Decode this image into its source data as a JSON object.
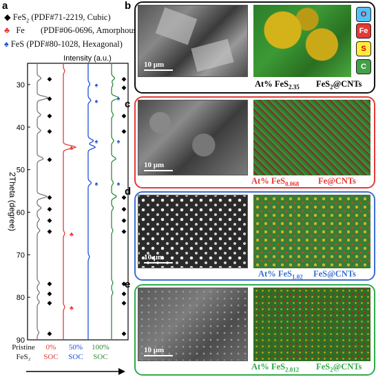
{
  "panel_labels": {
    "a": "a",
    "b": "b",
    "c": "c",
    "d": "d",
    "e": "e"
  },
  "legend": [
    {
      "marker": "◆",
      "color": "#000000",
      "name": "FeS",
      "sub": "2",
      "ref": "(PDF#71-2219, Cubic)"
    },
    {
      "marker": "♣",
      "color": "#e53935",
      "name": "Fe",
      "sub": "",
      "ref": "(PDF#06-0696, Amorphous)"
    },
    {
      "marker": "♠",
      "color": "#1e4fd8",
      "name": "FeS",
      "sub": "",
      "ref": "(PDF#80-1028, Hexagonal)"
    }
  ],
  "chart_data": {
    "type": "line",
    "title": "",
    "xlabel": "Intensity (a.u.)",
    "ylabel": "2Theta (degree)",
    "ylim": [
      90,
      25
    ],
    "yticks": [
      30,
      40,
      50,
      60,
      70,
      80,
      90
    ],
    "series": [
      {
        "name": "Pristine FeS2",
        "color": "#7a7a7a",
        "offset": 0,
        "peaks": [
          [
            28.5,
            0.9
          ],
          [
            33.1,
            2.4
          ],
          [
            37.1,
            0.8
          ],
          [
            40.8,
            0.8
          ],
          [
            47.4,
            1.4
          ],
          [
            56.3,
            2.2
          ],
          [
            59.0,
            0.9
          ],
          [
            61.7,
            0.5
          ],
          [
            64.3,
            0.6
          ],
          [
            76.6,
            0.5
          ],
          [
            78.9,
            0.5
          ],
          [
            81.1,
            0.5
          ],
          [
            88.3,
            0.4
          ]
        ],
        "markers": {
          "symbol": "◆",
          "color": "#000000",
          "positions": [
            28.5,
            33.1,
            37.1,
            40.8,
            47.4,
            56.3,
            59.0,
            61.7,
            64.3,
            76.6,
            78.9,
            81.1,
            88.3
          ]
        }
      },
      {
        "name": "0% SOC",
        "color": "#e53935",
        "offset": 1,
        "peaks": [
          [
            26.8,
            0.3
          ],
          [
            44.7,
            2.8
          ],
          [
            65.0,
            0.3
          ],
          [
            82.3,
            0.3
          ]
        ],
        "markers": {
          "symbol": "♣",
          "color": "#e53935",
          "positions": [
            44.7,
            65.0,
            82.3
          ]
        }
      },
      {
        "name": "50% SOC",
        "color": "#1e4fd8",
        "offset": 2,
        "peaks": [
          [
            29.9,
            0.4
          ],
          [
            33.7,
            0.6
          ],
          [
            43.2,
            1.2
          ],
          [
            44.7,
            1.6
          ],
          [
            53.1,
            0.7
          ],
          [
            70.5,
            0.3
          ]
        ],
        "markers": {
          "symbol": "♠",
          "color": "#1e4fd8",
          "positions": [
            29.9,
            33.7,
            43.2,
            53.1
          ]
        }
      },
      {
        "name": "100% SOC",
        "color": "#2e8b3a",
        "offset": 3,
        "peaks": [
          [
            28.5,
            0.7
          ],
          [
            30.0,
            0.3
          ],
          [
            33.1,
            1.6
          ],
          [
            37.1,
            0.4
          ],
          [
            43.2,
            0.5
          ],
          [
            47.4,
            1.0
          ],
          [
            53.1,
            0.4
          ],
          [
            56.3,
            1.1
          ],
          [
            59.0,
            0.4
          ],
          [
            64.3,
            0.3
          ],
          [
            76.6,
            0.3
          ],
          [
            78.9,
            0.3
          ]
        ],
        "markers_fes2": {
          "symbol": "◆",
          "color": "#000000",
          "positions": [
            28.5,
            30.5,
            37.1,
            40.8,
            56.3,
            59.0,
            61.7,
            64.3,
            76.6,
            78.9,
            81.1,
            88.3
          ]
        },
        "markers_fes": {
          "symbol": "♠",
          "color": "#1e4fd8",
          "positions": [
            33.1,
            43.2,
            53.1
          ]
        }
      }
    ],
    "bottom_labels": [
      {
        "line1": "Pristine",
        "line2": "FeS₂",
        "color": "#111111"
      },
      {
        "line1": "0%",
        "line2": "SOC",
        "color": "#e53935"
      },
      {
        "line1": "50%",
        "line2": "SOC",
        "color": "#1e4fd8"
      },
      {
        "line1": "100%",
        "line2": "SOC",
        "color": "#2e8b3a"
      }
    ]
  },
  "panels": {
    "b": {
      "border": "#111111",
      "scale": "10 μm",
      "cap_left": "At% FeS",
      "cap_left_sub": "2.35",
      "cap_left_color": "#000000",
      "cap_right": "FeS",
      "cap_right_sub": "2",
      "cap_right_tail": "@CNTs",
      "cap_right_color": "#000000",
      "elements": [
        {
          "sym": "O",
          "bg": "#4fc3f7"
        },
        {
          "sym": "Fe",
          "bg": "#e53935"
        },
        {
          "sym": "S",
          "bg": "#ffeb3b"
        },
        {
          "sym": "C",
          "bg": "#43a047"
        }
      ]
    },
    "c": {
      "border": "#e53935",
      "scale": "10 μm",
      "cap_left": "At% FeS",
      "cap_left_sub": "0.068",
      "cap_left_color": "#e53935",
      "cap_right": "Fe@CNTs",
      "cap_right_sub": "",
      "cap_right_tail": "",
      "cap_right_color": "#e53935"
    },
    "d": {
      "border": "#3b6fd0",
      "scale": "10 μm",
      "cap_left": "At% FeS",
      "cap_left_sub": "1.02",
      "cap_left_color": "#3b6fd0",
      "cap_right": "FeS@CNTs",
      "cap_right_sub": "",
      "cap_right_tail": "",
      "cap_right_color": "#3b6fd0"
    },
    "e": {
      "border": "#2eaa4a",
      "scale": "10 μm",
      "cap_left": "At% FeS",
      "cap_left_sub": "2.012",
      "cap_left_color": "#2eaa4a",
      "cap_right": "FeS",
      "cap_right_sub": "2",
      "cap_right_tail": "@CNTs",
      "cap_right_color": "#2eaa4a"
    }
  }
}
